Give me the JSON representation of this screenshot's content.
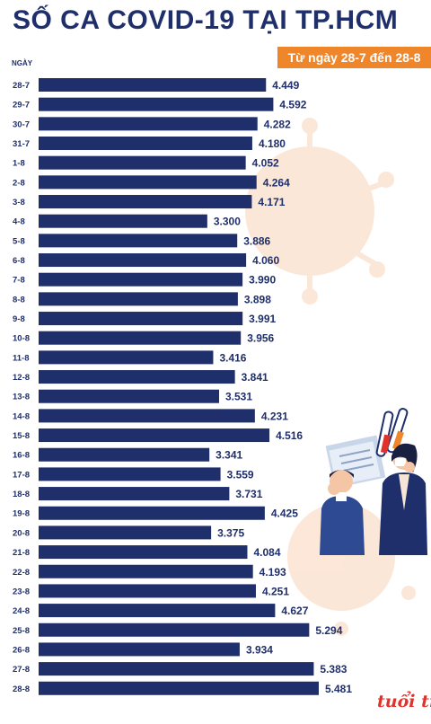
{
  "header": {
    "title": "SỐ CA COVID-19 TẠI TP.HCM",
    "subtitle": "Từ ngày 28-7 đến 28-8",
    "axis_label": "NGÀY"
  },
  "brand": {
    "logo_text": "tuổi trẻ"
  },
  "colors": {
    "bar": "#1f2f6b",
    "label": "#1f2f6b",
    "accent": "#f0862a"
  },
  "chart_data": {
    "type": "bar",
    "orientation": "horizontal",
    "title": "SỐ CA COVID-19 TẠI TP.HCM",
    "subtitle": "Từ ngày 28-7 đến 28-8",
    "ylabel": "NGÀY",
    "categories": [
      "28-7",
      "29-7",
      "30-7",
      "31-7",
      "1-8",
      "2-8",
      "3-8",
      "4-8",
      "5-8",
      "6-8",
      "7-8",
      "8-8",
      "9-8",
      "10-8",
      "11-8",
      "12-8",
      "13-8",
      "14-8",
      "15-8",
      "16-8",
      "17-8",
      "18-8",
      "19-8",
      "20-8",
      "21-8",
      "22-8",
      "23-8",
      "24-8",
      "25-8",
      "26-8",
      "27-8",
      "28-8"
    ],
    "values": [
      4449,
      4592,
      4282,
      4180,
      4052,
      4264,
      4171,
      3300,
      3886,
      4060,
      3990,
      3898,
      3991,
      3956,
      3416,
      3841,
      3531,
      4231,
      4516,
      3341,
      3559,
      3731,
      4425,
      3375,
      4084,
      4193,
      4251,
      4627,
      5294,
      3934,
      5383,
      5481
    ],
    "value_labels": [
      "4.449",
      "4.592",
      "4.282",
      "4.180",
      "4.052",
      "4.264",
      "4.171",
      "3.300",
      "3.886",
      "4.060",
      "3.990",
      "3.898",
      "3.991",
      "3.956",
      "3.416",
      "3.841",
      "3.531",
      "4.231",
      "4.516",
      "3.341",
      "3.559",
      "3.731",
      "4.425",
      "3.375",
      "4.084",
      "4.193",
      "4.251",
      "4.627",
      "5.294",
      "3.934",
      "5.383",
      "5.481"
    ],
    "xlim": [
      0,
      5481
    ],
    "grid": false,
    "legend": "none"
  }
}
